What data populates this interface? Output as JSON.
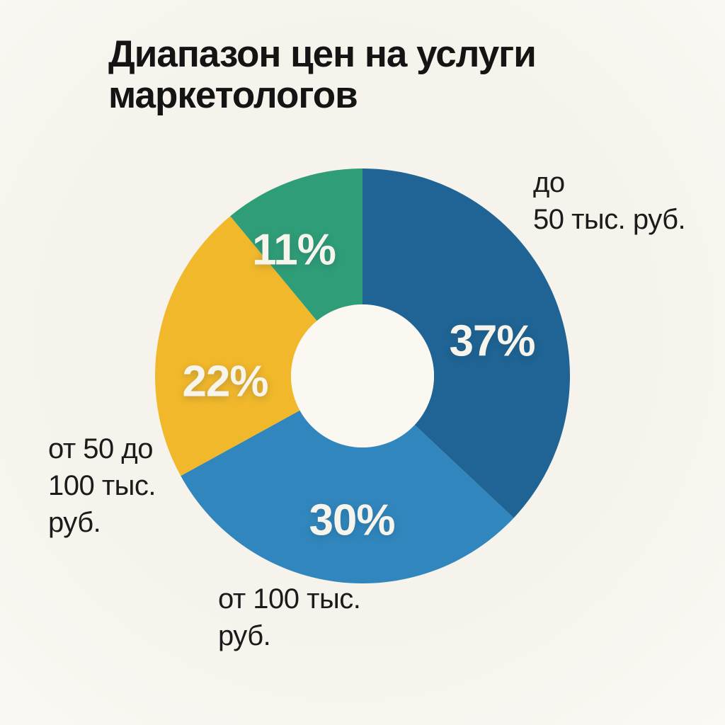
{
  "colors": {
    "background": "#f6f3ec",
    "background_edge": "#fbf9f4",
    "donut_hole": "#faf8f1",
    "title_text": "#141414",
    "label_text": "#1b1b1b",
    "pct_text": "#f7f4ec"
  },
  "chart_data": {
    "type": "pie",
    "variant": "donut",
    "title": "Диапазон цен на услуги маркетологов",
    "legend_position": "none",
    "value_labels": "percent-inside-slices",
    "segments": [
      {
        "name": "up-to-50k",
        "outer_label": "до\n50 тыс. руб.",
        "value": 37,
        "pct_text": "37%",
        "color": "#1f6494"
      },
      {
        "name": "from-100k",
        "outer_label": "от 100 тыс.\nруб.",
        "value": 30,
        "pct_text": "30%",
        "color": "#3187bd"
      },
      {
        "name": "50k-to-100k",
        "outer_label": "от 50 до\n100 тыс.\nруб.",
        "value": 22,
        "pct_text": "22%",
        "color": "#f1b82b"
      },
      {
        "name": "green-11",
        "outer_label": "",
        "value": 11,
        "pct_text": "11%",
        "color": "#2f9e78"
      }
    ]
  }
}
